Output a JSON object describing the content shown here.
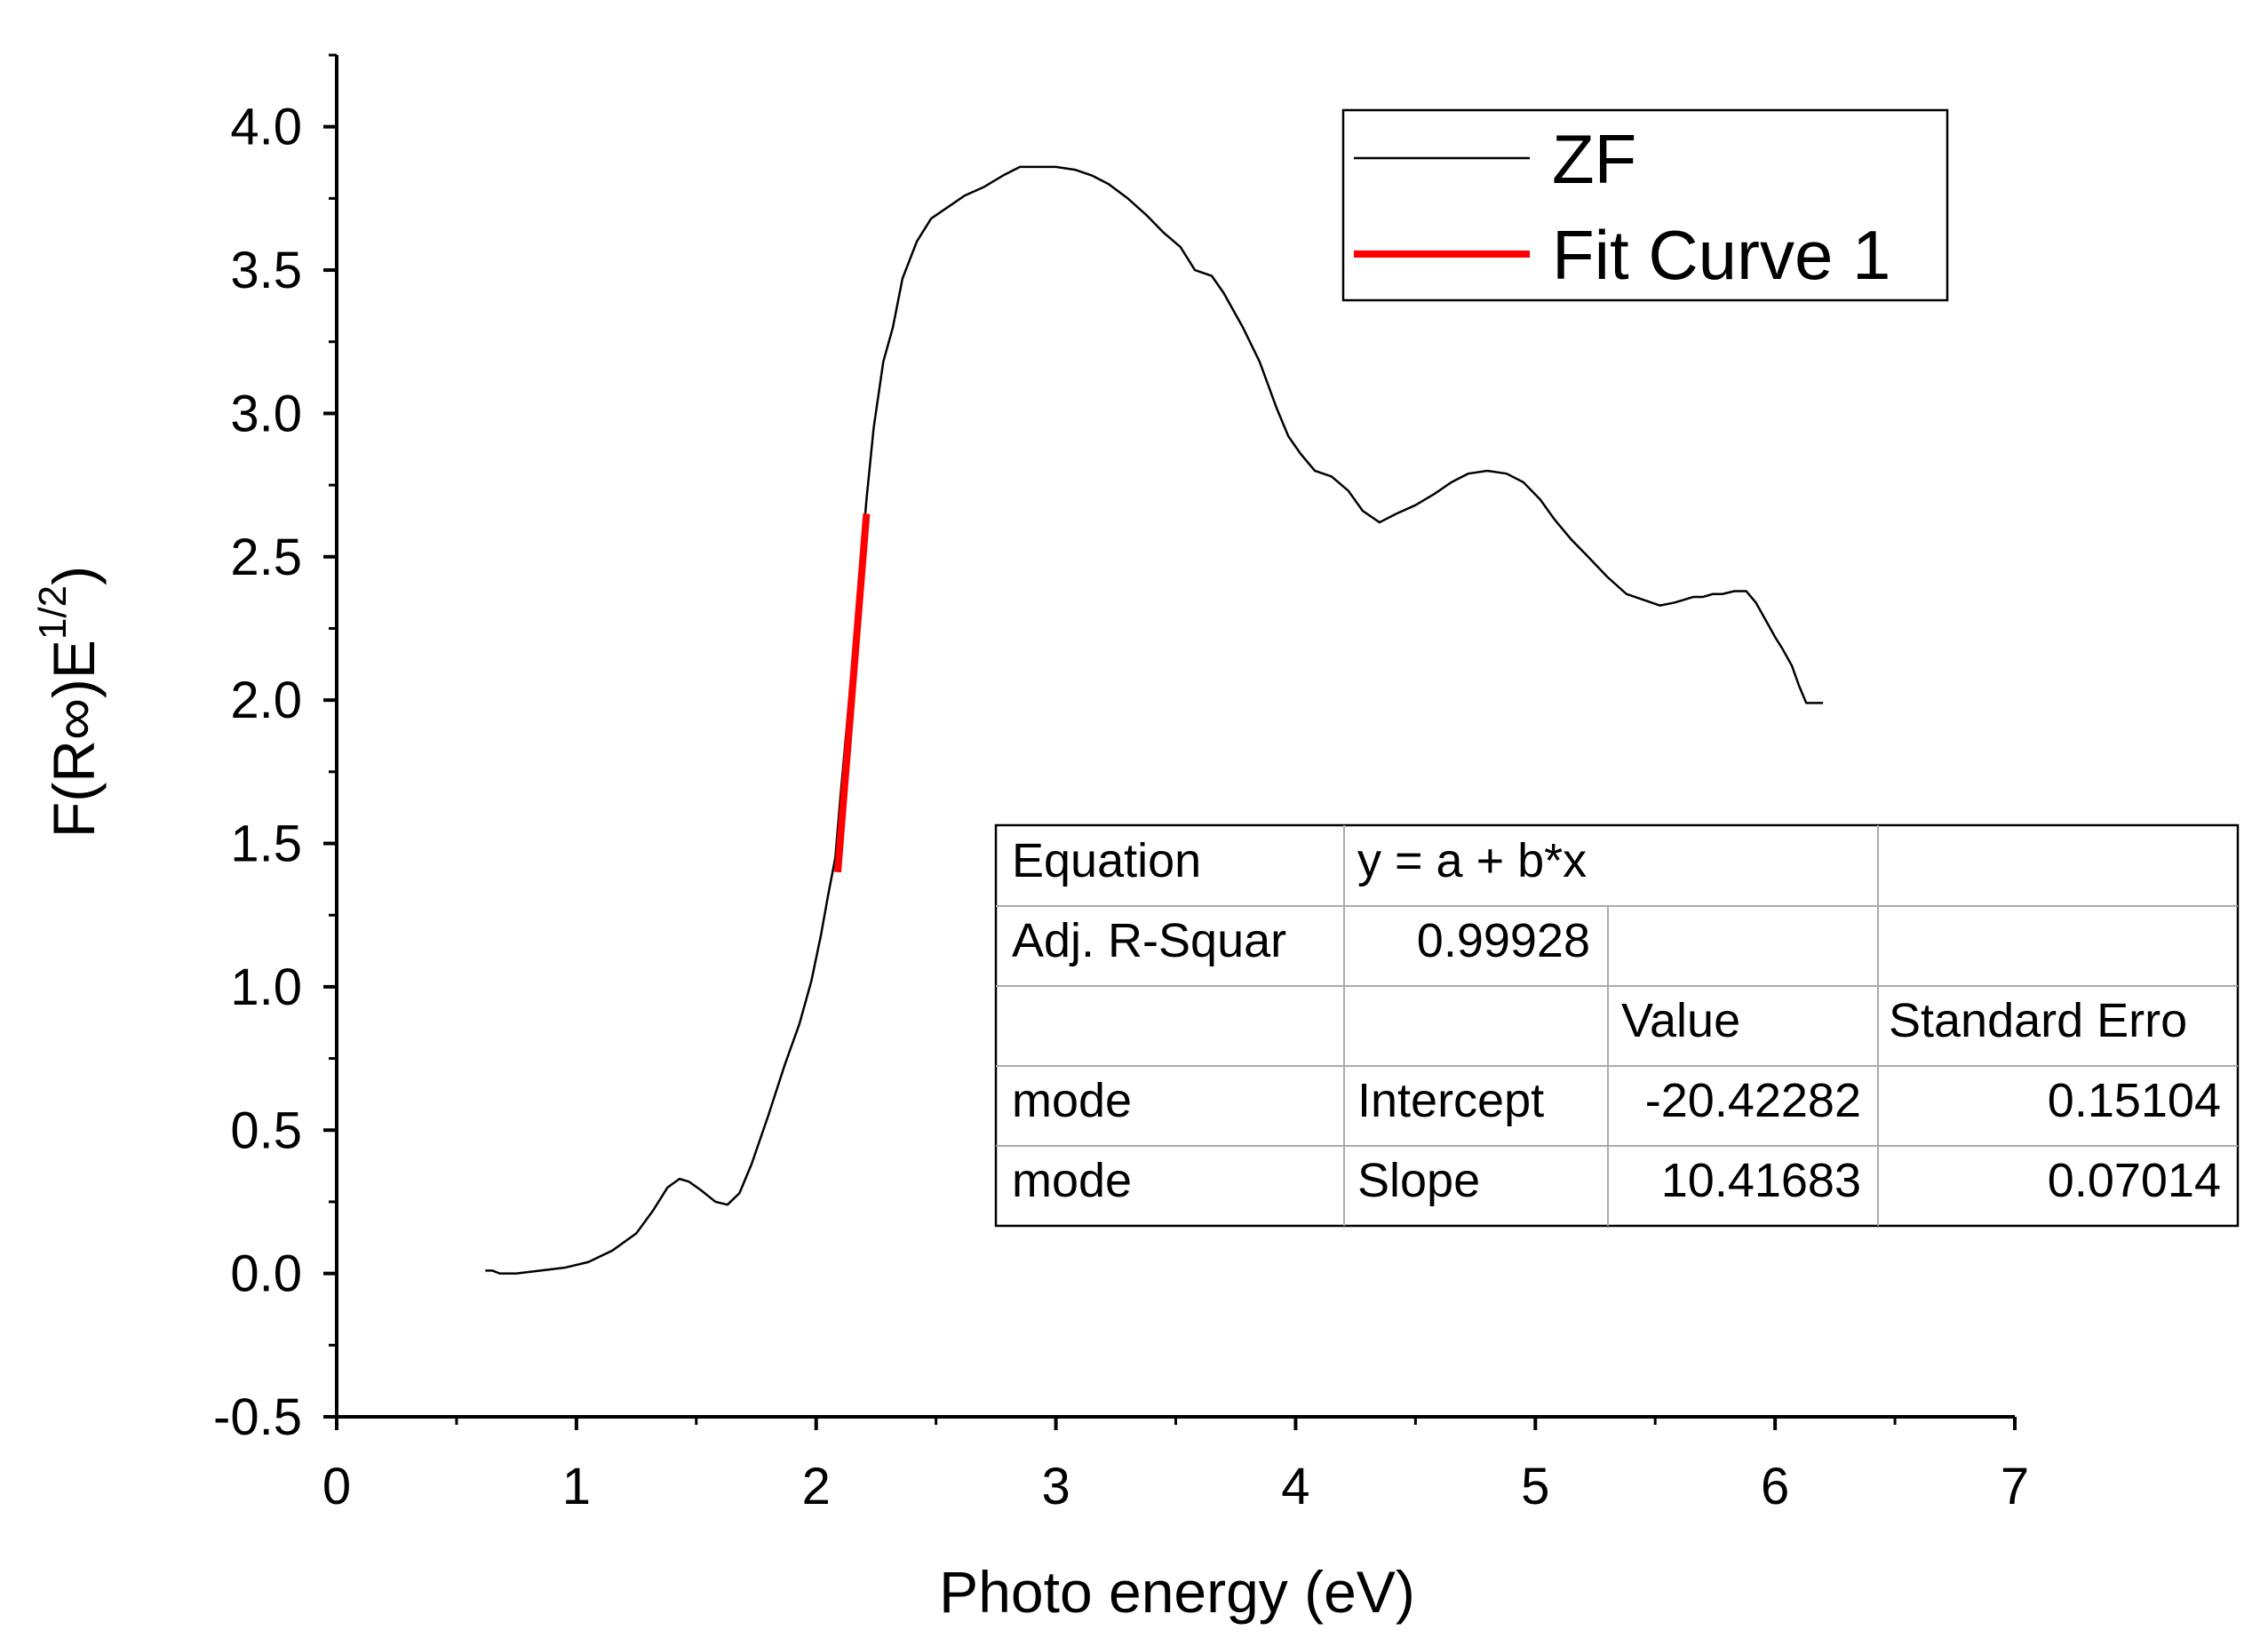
{
  "chart_data": {
    "type": "line",
    "xlabel": "Photo energy (eV)",
    "ylabel_main": "F(R∞)E",
    "ylabel_sup": "1/2",
    "xlim": [
      0,
      7
    ],
    "ylim": [
      -0.5,
      4.25
    ],
    "x_ticks": [
      0,
      1,
      2,
      3,
      4,
      5,
      6,
      7
    ],
    "x_tick_labels": [
      "0",
      "1",
      "2",
      "3",
      "4",
      "5",
      "6",
      "7"
    ],
    "y_ticks": [
      -0.5,
      0.0,
      0.5,
      1.0,
      1.5,
      2.0,
      2.5,
      3.0,
      3.5,
      4.0
    ],
    "y_tick_labels": [
      "-0.5",
      "0.0",
      "0.5",
      "1.0",
      "1.5",
      "2.0",
      "2.5",
      "3.0",
      "3.5",
      "4.0"
    ],
    "series": [
      {
        "name": "ZF",
        "color": "#000000",
        "x": [
          0.62,
          0.65,
          0.68,
          0.75,
          0.85,
          0.95,
          1.05,
          1.15,
          1.25,
          1.32,
          1.38,
          1.43,
          1.47,
          1.52,
          1.58,
          1.63,
          1.68,
          1.73,
          1.8,
          1.87,
          1.93,
          1.98,
          2.02,
          2.05,
          2.08,
          2.1,
          2.13,
          2.16,
          2.19,
          2.21,
          2.24,
          2.28,
          2.32,
          2.36,
          2.42,
          2.48,
          2.55,
          2.62,
          2.7,
          2.78,
          2.85,
          2.92,
          3.0,
          3.08,
          3.15,
          3.22,
          3.3,
          3.38,
          3.45,
          3.52,
          3.58,
          3.65,
          3.7,
          3.78,
          3.85,
          3.92,
          3.97,
          4.02,
          4.08,
          4.15,
          4.22,
          4.28,
          4.35,
          4.42,
          4.5,
          4.58,
          4.65,
          4.72,
          4.8,
          4.88,
          4.95,
          5.02,
          5.08,
          5.15,
          5.22,
          5.3,
          5.38,
          5.45,
          5.52,
          5.58,
          5.62,
          5.66,
          5.7,
          5.74,
          5.78,
          5.83,
          5.88,
          5.92,
          5.96,
          6.0,
          6.03,
          6.07,
          6.1,
          6.13,
          6.16,
          6.2
        ],
        "y": [
          0.01,
          0.01,
          0.0,
          0.0,
          0.01,
          0.02,
          0.04,
          0.08,
          0.14,
          0.22,
          0.3,
          0.33,
          0.32,
          0.29,
          0.25,
          0.24,
          0.28,
          0.38,
          0.55,
          0.73,
          0.87,
          1.02,
          1.18,
          1.32,
          1.45,
          1.65,
          1.93,
          2.22,
          2.5,
          2.7,
          2.95,
          3.18,
          3.3,
          3.47,
          3.6,
          3.68,
          3.72,
          3.76,
          3.79,
          3.83,
          3.86,
          3.86,
          3.86,
          3.85,
          3.83,
          3.8,
          3.75,
          3.69,
          3.63,
          3.58,
          3.5,
          3.48,
          3.42,
          3.3,
          3.18,
          3.02,
          2.92,
          2.86,
          2.8,
          2.78,
          2.73,
          2.66,
          2.62,
          2.65,
          2.68,
          2.72,
          2.76,
          2.79,
          2.8,
          2.79,
          2.76,
          2.7,
          2.63,
          2.56,
          2.5,
          2.43,
          2.37,
          2.35,
          2.33,
          2.34,
          2.35,
          2.36,
          2.36,
          2.37,
          2.37,
          2.38,
          2.38,
          2.34,
          2.28,
          2.22,
          2.18,
          2.12,
          2.05,
          1.99,
          1.99,
          1.99
        ]
      },
      {
        "name": "Fit Curve 1",
        "color": "#ff0000",
        "x": [
          2.09,
          2.21
        ],
        "y": [
          1.4,
          2.65
        ]
      }
    ],
    "legend": {
      "position": "top-right",
      "entries": [
        "ZF",
        "Fit Curve 1"
      ]
    },
    "fit_table": {
      "rows": [
        [
          "Equation",
          "y = a + b*x",
          "",
          ""
        ],
        [
          "Adj. R-Squar",
          "0.99928",
          "",
          ""
        ],
        [
          "",
          "",
          "Value",
          "Standard Erro"
        ],
        [
          "mode",
          "Intercept",
          "-20.42282",
          "0.15104"
        ],
        [
          "mode",
          "Slope",
          "10.41683",
          "0.07014"
        ]
      ]
    }
  }
}
